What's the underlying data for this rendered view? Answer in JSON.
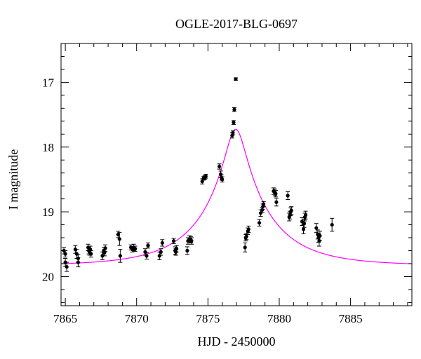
{
  "chart_data": {
    "type": "scatter",
    "title": "OGLE-2017-BLG-0697",
    "xlabel": "HJD - 2450000",
    "ylabel": "I magnitude",
    "xlim": [
      7864.7,
      7889.3
    ],
    "ylim": [
      20.45,
      16.4
    ],
    "y_inverted": true,
    "grid": false,
    "x_ticks": [
      7865,
      7870,
      7875,
      7880,
      7885
    ],
    "y_ticks": [
      17,
      18,
      19,
      20
    ],
    "x_minor_step": 1,
    "y_minor_step": 0.2,
    "colors": {
      "points": "#000000",
      "model": "#ff00ff",
      "axes": "#000000"
    },
    "series": [
      {
        "kind": "points_with_errorbars",
        "points": [
          [
            7864.9,
            19.6,
            0.05
          ],
          [
            7865.0,
            19.65,
            0.05
          ],
          [
            7865.1,
            19.85,
            0.07
          ],
          [
            7865.0,
            19.78,
            0.06
          ],
          [
            7865.7,
            19.58,
            0.06
          ],
          [
            7865.8,
            19.65,
            0.07
          ],
          [
            7865.9,
            19.72,
            0.06
          ],
          [
            7865.9,
            19.78,
            0.07
          ],
          [
            7866.6,
            19.55,
            0.05
          ],
          [
            7866.65,
            19.6,
            0.05
          ],
          [
            7866.7,
            19.62,
            0.05
          ],
          [
            7866.8,
            19.65,
            0.05
          ],
          [
            7866.75,
            19.58,
            0.05
          ],
          [
            7867.6,
            19.68,
            0.06
          ],
          [
            7867.7,
            19.6,
            0.05
          ],
          [
            7867.75,
            19.63,
            0.05
          ],
          [
            7867.8,
            19.56,
            0.05
          ],
          [
            7868.7,
            19.35,
            0.05
          ],
          [
            7868.8,
            19.42,
            0.1
          ],
          [
            7868.85,
            19.68,
            0.1
          ],
          [
            7869.6,
            19.55,
            0.04
          ],
          [
            7869.7,
            19.58,
            0.04
          ],
          [
            7869.8,
            19.55,
            0.05
          ],
          [
            7869.9,
            19.57,
            0.04
          ],
          [
            7870.6,
            19.62,
            0.05
          ],
          [
            7870.7,
            19.68,
            0.05
          ],
          [
            7870.8,
            19.52,
            0.04
          ],
          [
            7871.6,
            19.68,
            0.06
          ],
          [
            7871.7,
            19.62,
            0.05
          ],
          [
            7871.8,
            19.48,
            0.05
          ],
          [
            7872.6,
            19.45,
            0.04
          ],
          [
            7872.7,
            19.6,
            0.06
          ],
          [
            7872.75,
            19.62,
            0.05
          ],
          [
            7872.8,
            19.57,
            0.05
          ],
          [
            7873.55,
            19.6,
            0.06
          ],
          [
            7873.6,
            19.45,
            0.05
          ],
          [
            7873.7,
            19.42,
            0.05
          ],
          [
            7873.8,
            19.43,
            0.05
          ],
          [
            7873.85,
            19.45,
            0.05
          ],
          [
            7874.6,
            18.53,
            0.04
          ],
          [
            7874.7,
            18.48,
            0.03
          ],
          [
            7874.8,
            18.47,
            0.03
          ],
          [
            7874.85,
            18.45,
            0.03
          ],
          [
            7875.8,
            18.3,
            0.04
          ],
          [
            7875.9,
            18.42,
            0.05
          ],
          [
            7875.95,
            18.47,
            0.04
          ],
          [
            7876.0,
            18.5,
            0.04
          ],
          [
            7876.7,
            17.82,
            0.04
          ],
          [
            7876.75,
            17.78,
            0.03
          ],
          [
            7876.8,
            17.62,
            0.03
          ],
          [
            7876.85,
            17.42,
            0.03
          ],
          [
            7876.95,
            16.95,
            0.02
          ],
          [
            7877.6,
            19.55,
            0.07
          ],
          [
            7877.65,
            19.4,
            0.05
          ],
          [
            7877.7,
            19.38,
            0.05
          ],
          [
            7877.8,
            19.3,
            0.05
          ],
          [
            7877.85,
            19.27,
            0.05
          ],
          [
            7878.6,
            19.17,
            0.05
          ],
          [
            7878.7,
            19.02,
            0.05
          ],
          [
            7878.8,
            18.97,
            0.04
          ],
          [
            7878.85,
            18.92,
            0.04
          ],
          [
            7878.9,
            18.88,
            0.04
          ],
          [
            7879.6,
            18.68,
            0.05
          ],
          [
            7879.7,
            18.7,
            0.05
          ],
          [
            7879.75,
            18.72,
            0.05
          ],
          [
            7879.8,
            18.85,
            0.06
          ],
          [
            7880.6,
            18.75,
            0.06
          ],
          [
            7880.7,
            19.08,
            0.06
          ],
          [
            7880.75,
            19.05,
            0.06
          ],
          [
            7880.8,
            19.0,
            0.06
          ],
          [
            7880.85,
            18.98,
            0.06
          ],
          [
            7881.6,
            19.15,
            0.06
          ],
          [
            7881.7,
            19.27,
            0.07
          ],
          [
            7881.75,
            19.18,
            0.06
          ],
          [
            7881.8,
            19.08,
            0.06
          ],
          [
            7881.85,
            19.05,
            0.06
          ],
          [
            7882.6,
            19.25,
            0.07
          ],
          [
            7882.7,
            19.35,
            0.07
          ],
          [
            7882.75,
            19.4,
            0.07
          ],
          [
            7882.8,
            19.45,
            0.08
          ],
          [
            7882.85,
            19.37,
            0.07
          ],
          [
            7883.7,
            19.2,
            0.1
          ]
        ]
      },
      {
        "kind": "model_curve",
        "t0": 7876.95,
        "u0": 0.145,
        "tE": 4.7,
        "baseline": 19.83,
        "x_range": [
          7864.7,
          7889.3
        ]
      }
    ]
  }
}
